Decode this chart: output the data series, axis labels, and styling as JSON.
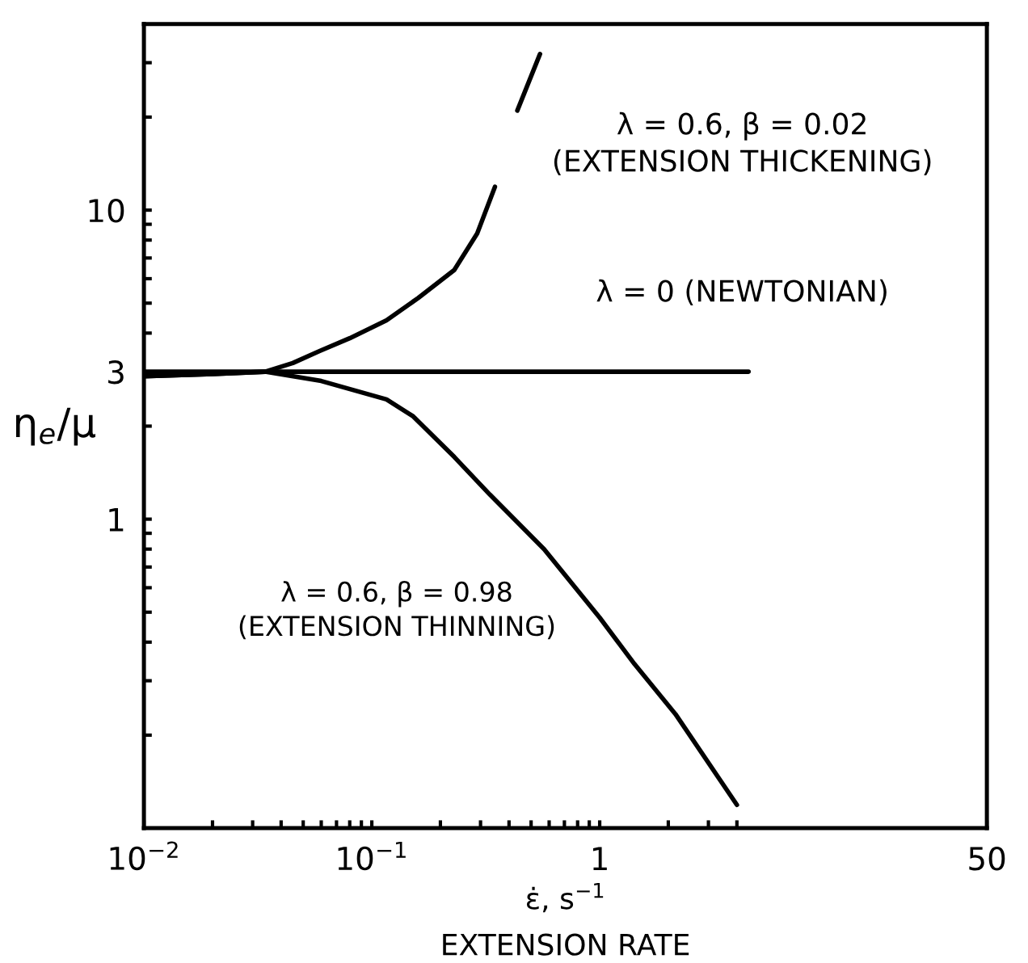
{
  "chart_data": {
    "type": "line",
    "xlabel": "ε̇, s$^{−1}$\nEXTENSION RATE",
    "ylabel": "η$_{e}$/μ",
    "log": "xy",
    "grid": false,
    "marker": "none",
    "line_style": "solid",
    "xlim": [
      0.01,
      50
    ],
    "ylim": [
      0.1,
      40
    ],
    "xticks": [
      {
        "value": 0.01,
        "label": "10$^{−2}$"
      },
      {
        "value": 0.02,
        "label": null
      },
      {
        "value": 0.03,
        "label": null
      },
      {
        "value": 0.04,
        "label": null
      },
      {
        "value": 0.05,
        "label": null
      },
      {
        "value": 0.06,
        "label": null
      },
      {
        "value": 0.07,
        "label": null
      },
      {
        "value": 0.08,
        "label": null
      },
      {
        "value": 0.09,
        "label": null
      },
      {
        "value": 0.1,
        "label": "10$^{−1}$"
      },
      {
        "value": 0.2,
        "label": null
      },
      {
        "value": 0.3,
        "label": null
      },
      {
        "value": 0.4,
        "label": null
      },
      {
        "value": 0.5,
        "label": null
      },
      {
        "value": 0.6,
        "label": null
      },
      {
        "value": 0.7,
        "label": null
      },
      {
        "value": 0.8,
        "label": null
      },
      {
        "value": 0.9,
        "label": null
      },
      1,
      {
        "value": 2,
        "label": null
      },
      {
        "value": 3,
        "label": null
      },
      {
        "value": 4,
        "label": null
      },
      50
    ],
    "yticks": [
      {
        "value": 0.2,
        "label": null
      },
      {
        "value": 0.3,
        "label": null
      },
      {
        "value": 0.4,
        "label": null
      },
      {
        "value": 0.5,
        "label": null
      },
      {
        "value": 0.6,
        "label": null
      },
      {
        "value": 0.7,
        "label": null
      },
      {
        "value": 0.8,
        "label": null
      },
      {
        "value": 0.9,
        "label": null
      },
      1,
      {
        "value": 2,
        "label": null
      },
      3,
      {
        "value": 4,
        "label": null
      },
      {
        "value": 5,
        "label": null
      },
      {
        "value": 6,
        "label": null
      },
      {
        "value": 7,
        "label": null
      },
      {
        "value": 8,
        "label": null
      },
      {
        "value": 9,
        "label": null
      },
      10,
      {
        "value": 20,
        "label": null
      },
      {
        "value": 30,
        "label": null
      }
    ],
    "series": [
      {
        "color": "#000000",
        "x": [
          0.01,
          0.02,
          0.034,
          0.045,
          0.059,
          0.08,
          0.116,
          0.16,
          0.23,
          0.29,
          0.347,
          0.39,
          0.435,
          0.547
        ],
        "values": [
          2.9,
          2.95,
          3.0,
          3.2,
          3.5,
          3.85,
          4.4,
          5.2,
          6.4,
          8.4,
          11.9,
          null,
          21,
          32
        ]
      },
      {
        "color": "#000000",
        "x": [
          0.01,
          4.5
        ],
        "values": [
          3,
          3
        ]
      },
      {
        "color": "#000000",
        "x": [
          0.01,
          0.02,
          0.034,
          0.06,
          0.116,
          0.152,
          0.23,
          0.33,
          0.57,
          1,
          1.42,
          2.15,
          4.0
        ],
        "values": [
          2.9,
          2.95,
          3.0,
          2.8,
          2.44,
          2.15,
          1.59,
          1.2,
          0.8,
          0.48,
          0.34,
          0.234,
          0.119
        ]
      }
    ],
    "annotations": [
      "λ = 0.6, β = 0.02\n(EXTENSION THICKENING)",
      "λ = 0 (NEWTONIAN)",
      "λ = 0.6, β = 0.98\n(EXTENSION THINNING)"
    ]
  }
}
